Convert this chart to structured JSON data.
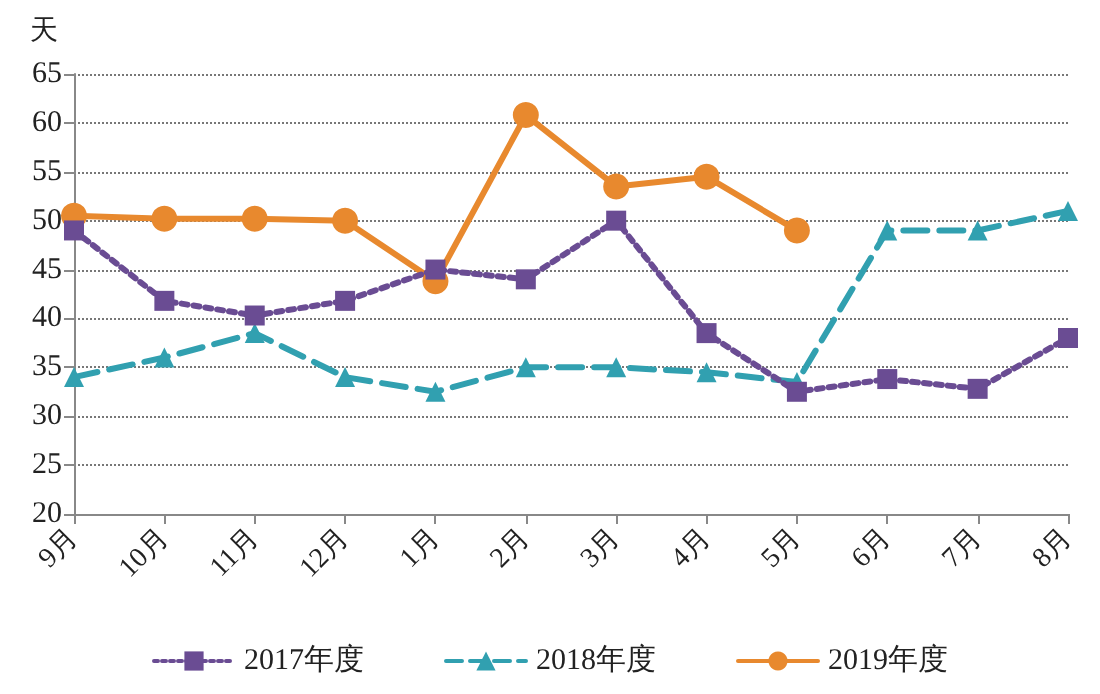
{
  "chart_data": {
    "type": "line",
    "ylabel": "天",
    "categories": [
      "9月",
      "10月",
      "11月",
      "12月",
      "1月",
      "2月",
      "3月",
      "4月",
      "5月",
      "6月",
      "7月",
      "8月"
    ],
    "ylim": [
      20,
      65
    ],
    "yticks": [
      20,
      25,
      30,
      35,
      40,
      45,
      50,
      55,
      60,
      65
    ],
    "grid": "y",
    "legend": "bottom",
    "series": [
      {
        "name": "2017年度",
        "color": "#6a4c93",
        "marker": "square",
        "line_style": "dotted",
        "values": [
          49,
          41.8,
          40.3,
          41.8,
          45,
          44,
          50,
          38.5,
          32.5,
          33.8,
          32.8,
          38
        ]
      },
      {
        "name": "2018年度",
        "color": "#31a0b0",
        "marker": "triangle",
        "line_style": "dashed",
        "values": [
          34,
          36,
          38.5,
          34,
          32.5,
          35,
          35,
          34.5,
          33.5,
          49,
          49,
          51
        ]
      },
      {
        "name": "2019年度",
        "color": "#e8892e",
        "marker": "circle",
        "line_style": "solid",
        "values": [
          50.5,
          50.2,
          50.2,
          50,
          43.8,
          60.8,
          53.5,
          54.5,
          49,
          null,
          null,
          null
        ]
      }
    ]
  }
}
